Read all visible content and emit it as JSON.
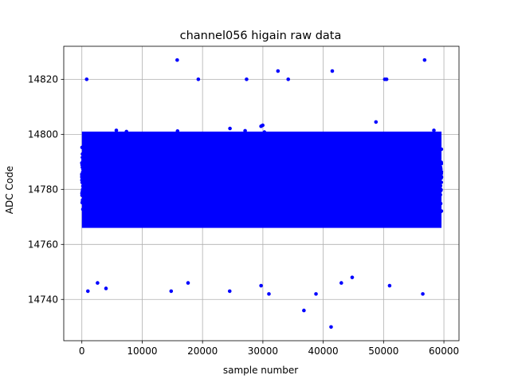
{
  "chart_data": {
    "type": "scatter",
    "title": "channel056 higain raw data",
    "xlabel": "sample number",
    "ylabel": "ADC Code",
    "xlim": [
      -3000,
      62500
    ],
    "ylim": [
      14725,
      14832
    ],
    "xticks": [
      0,
      10000,
      20000,
      30000,
      40000,
      50000,
      60000
    ],
    "yticks": [
      14740,
      14760,
      14780,
      14800,
      14820
    ],
    "xtick_labels": [
      "0",
      "10000",
      "20000",
      "30000",
      "40000",
      "50000",
      "60000"
    ],
    "ytick_labels": [
      "14740",
      "14760",
      "14780",
      "14800",
      "14820"
    ],
    "grid": true,
    "marker_color": "#0000ff",
    "series": [
      {
        "x_range": [
          0,
          59600
        ],
        "y_dense_band": [
          14762,
          14808
        ],
        "sample_count": 59600,
        "outliers": [
          {
            "x": 800,
            "y": 14820
          },
          {
            "x": 15800,
            "y": 14827
          },
          {
            "x": 32500,
            "y": 14823
          },
          {
            "x": 41500,
            "y": 14823
          },
          {
            "x": 56800,
            "y": 14827
          },
          {
            "x": 19300,
            "y": 14820
          },
          {
            "x": 27300,
            "y": 14820
          },
          {
            "x": 34200,
            "y": 14820
          },
          {
            "x": 50200,
            "y": 14820
          },
          {
            "x": 50500,
            "y": 14820
          },
          {
            "x": 1000,
            "y": 14743
          },
          {
            "x": 2600,
            "y": 14746
          },
          {
            "x": 4000,
            "y": 14744
          },
          {
            "x": 14800,
            "y": 14743
          },
          {
            "x": 24500,
            "y": 14743
          },
          {
            "x": 31000,
            "y": 14742
          },
          {
            "x": 36800,
            "y": 14736
          },
          {
            "x": 38800,
            "y": 14742
          },
          {
            "x": 41300,
            "y": 14730
          },
          {
            "x": 43000,
            "y": 14746
          },
          {
            "x": 51000,
            "y": 14745
          },
          {
            "x": 56500,
            "y": 14742
          },
          {
            "x": 29700,
            "y": 14745
          },
          {
            "x": 17600,
            "y": 14746
          },
          {
            "x": 44800,
            "y": 14748
          }
        ]
      }
    ]
  }
}
